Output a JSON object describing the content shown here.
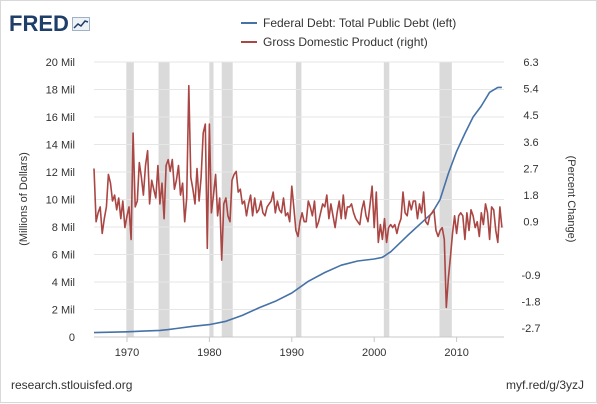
{
  "header": {
    "logo_text": "FRED"
  },
  "footer": {
    "source": "research.stlouisfed.org",
    "short_url": "myf.red/g/3yzJ"
  },
  "colors": {
    "debt": "#4572a7",
    "gdp": "#aa4643",
    "recession": "#dadada",
    "grid": "#e6e6e6",
    "logo": "#1f3e6a"
  },
  "chart_data": {
    "type": "line",
    "legend": [
      {
        "name": "Federal Debt: Total Public Debt (left)",
        "color": "#4572a7"
      },
      {
        "name": "Gross Domestic Product (right)",
        "color": "#aa4643"
      }
    ],
    "ylabel_left": "(Millions of Dollars)",
    "ylabel_right": "(Percent Change)",
    "x_ticks": [
      "1970",
      "1980",
      "1990",
      "2000",
      "2010"
    ],
    "y_left_ticks": [
      "0",
      "2 Mil",
      "4 Mil",
      "6 Mil",
      "8 Mil",
      "10 Mil",
      "12 Mil",
      "14 Mil",
      "16 Mil",
      "18 Mil",
      "20 Mil"
    ],
    "y_right_ticks": [
      "-2.7",
      "-1.8",
      "-0.9",
      "0.9",
      "1.8",
      "2.7",
      "3.6",
      "4.5",
      "5.4",
      "6.3"
    ],
    "xlim": [
      1966,
      2015.75
    ],
    "ylim_left": [
      0,
      20000000
    ],
    "ylim_right": [
      -3.0,
      6.3
    ],
    "recessions": [
      [
        1969.92,
        1970.83
      ],
      [
        1973.83,
        1975.17
      ],
      [
        1980.0,
        1980.5
      ],
      [
        1981.5,
        1982.83
      ],
      [
        1990.5,
        1991.17
      ],
      [
        2001.17,
        2001.83
      ],
      [
        2007.92,
        2009.42
      ]
    ],
    "series": [
      {
        "name": "Federal Debt: Total Public Debt (left)",
        "axis": "left",
        "points": [
          [
            1966,
            320000
          ],
          [
            1968,
            350000
          ],
          [
            1970,
            380000
          ],
          [
            1972,
            430000
          ],
          [
            1974,
            480000
          ],
          [
            1975,
            540000
          ],
          [
            1976,
            620000
          ],
          [
            1978,
            780000
          ],
          [
            1980,
            900000
          ],
          [
            1982,
            1140000
          ],
          [
            1984,
            1570000
          ],
          [
            1986,
            2120000
          ],
          [
            1988,
            2600000
          ],
          [
            1990,
            3200000
          ],
          [
            1992,
            4050000
          ],
          [
            1994,
            4690000
          ],
          [
            1996,
            5220000
          ],
          [
            1998,
            5530000
          ],
          [
            2000,
            5670000
          ],
          [
            2001,
            5800000
          ],
          [
            2002,
            6200000
          ],
          [
            2004,
            7350000
          ],
          [
            2006,
            8450000
          ],
          [
            2007,
            9000000
          ],
          [
            2008,
            10000000
          ],
          [
            2009,
            11900000
          ],
          [
            2010,
            13500000
          ],
          [
            2011,
            14800000
          ],
          [
            2012,
            16000000
          ],
          [
            2013,
            16800000
          ],
          [
            2014,
            17800000
          ],
          [
            2015,
            18150000
          ],
          [
            2015.5,
            18150000
          ]
        ]
      },
      {
        "name": "Gross Domestic Product (right)",
        "axis": "right",
        "points": [
          [
            1966.0,
            2.7
          ],
          [
            1966.25,
            0.9
          ],
          [
            1966.5,
            1.2
          ],
          [
            1966.75,
            1.4
          ],
          [
            1967.0,
            0.5
          ],
          [
            1967.25,
            1.0
          ],
          [
            1967.5,
            1.4
          ],
          [
            1967.75,
            2.5
          ],
          [
            1968.0,
            2.2
          ],
          [
            1968.25,
            1.6
          ],
          [
            1968.5,
            1.8
          ],
          [
            1968.75,
            1.3
          ],
          [
            1969.0,
            1.7
          ],
          [
            1969.25,
            1.0
          ],
          [
            1969.5,
            1.6
          ],
          [
            1969.75,
            0.7
          ],
          [
            1970.0,
            1.1
          ],
          [
            1970.25,
            1.4
          ],
          [
            1970.5,
            0.3
          ],
          [
            1970.75,
            3.9
          ],
          [
            1971.0,
            1.4
          ],
          [
            1971.25,
            1.6
          ],
          [
            1971.5,
            2.9
          ],
          [
            1971.75,
            2.4
          ],
          [
            1972.0,
            1.8
          ],
          [
            1972.25,
            2.8
          ],
          [
            1972.5,
            3.3
          ],
          [
            1972.75,
            1.5
          ],
          [
            1973.0,
            2.3
          ],
          [
            1973.25,
            2.0
          ],
          [
            1973.5,
            1.7
          ],
          [
            1973.75,
            2.8
          ],
          [
            1974.0,
            1.5
          ],
          [
            1974.25,
            2.2
          ],
          [
            1974.5,
            1.0
          ],
          [
            1974.75,
            2.8
          ],
          [
            1975.0,
            3.0
          ],
          [
            1975.25,
            2.6
          ],
          [
            1975.5,
            3.0
          ],
          [
            1975.75,
            2.0
          ],
          [
            1976.0,
            2.3
          ],
          [
            1976.25,
            2.8
          ],
          [
            1976.5,
            1.8
          ],
          [
            1976.75,
            2.2
          ],
          [
            1977.0,
            0.9
          ],
          [
            1977.25,
            1.7
          ],
          [
            1977.5,
            5.5
          ],
          [
            1977.75,
            2.4
          ],
          [
            1978.0,
            2.0
          ],
          [
            1978.25,
            1.5
          ],
          [
            1978.5,
            2.7
          ],
          [
            1978.75,
            1.6
          ],
          [
            1979.0,
            2.4
          ],
          [
            1979.25,
            3.9
          ],
          [
            1979.5,
            4.2
          ],
          [
            1979.75,
            0.0
          ],
          [
            1980.0,
            4.2
          ],
          [
            1980.25,
            1.2
          ],
          [
            1980.5,
            1.8
          ],
          [
            1980.75,
            2.5
          ],
          [
            1981.0,
            1.1
          ],
          [
            1981.25,
            1.7
          ],
          [
            1981.5,
            -0.4
          ],
          [
            1981.75,
            1.5
          ],
          [
            1982.0,
            1.7
          ],
          [
            1982.25,
            1.1
          ],
          [
            1982.5,
            0.9
          ],
          [
            1982.75,
            2.3
          ],
          [
            1983.0,
            2.5
          ],
          [
            1983.25,
            2.6
          ],
          [
            1983.5,
            1.9
          ],
          [
            1983.75,
            2.0
          ],
          [
            1984.0,
            1.5
          ],
          [
            1984.25,
            1.6
          ],
          [
            1984.5,
            1.1
          ],
          [
            1984.75,
            1.5
          ],
          [
            1985.0,
            1.8
          ],
          [
            1985.25,
            1.1
          ],
          [
            1985.5,
            1.7
          ],
          [
            1985.75,
            1.2
          ],
          [
            1986.0,
            1.3
          ],
          [
            1986.25,
            1.6
          ],
          [
            1986.5,
            1.2
          ],
          [
            1986.75,
            1.1
          ],
          [
            1987.0,
            1.4
          ],
          [
            1987.25,
            1.5
          ],
          [
            1987.5,
            1.6
          ],
          [
            1987.75,
            1.9
          ],
          [
            1988.0,
            1.2
          ],
          [
            1988.25,
            1.6
          ],
          [
            1988.5,
            1.3
          ],
          [
            1988.75,
            1.2
          ],
          [
            1989.0,
            1.7
          ],
          [
            1989.25,
            1.1
          ],
          [
            1989.5,
            1.2
          ],
          [
            1989.75,
            0.9
          ],
          [
            1990.0,
            2.1
          ],
          [
            1990.25,
            1.4
          ],
          [
            1990.5,
            0.6
          ],
          [
            1990.75,
            0.4
          ],
          [
            1991.0,
            0.9
          ],
          [
            1991.25,
            1.2
          ],
          [
            1991.5,
            0.9
          ],
          [
            1991.75,
            0.9
          ],
          [
            1992.0,
            1.6
          ],
          [
            1992.25,
            1.4
          ],
          [
            1992.5,
            1.1
          ],
          [
            1992.75,
            1.6
          ],
          [
            1993.0,
            0.7
          ],
          [
            1993.25,
            0.9
          ],
          [
            1993.5,
            1.2
          ],
          [
            1993.75,
            1.5
          ],
          [
            1994.0,
            1.4
          ],
          [
            1994.25,
            1.8
          ],
          [
            1994.5,
            1.0
          ],
          [
            1994.75,
            1.5
          ],
          [
            1995.0,
            1.1
          ],
          [
            1995.25,
            0.7
          ],
          [
            1995.5,
            1.2
          ],
          [
            1995.75,
            1.6
          ],
          [
            1996.0,
            1.0
          ],
          [
            1996.25,
            1.8
          ],
          [
            1996.5,
            1.0
          ],
          [
            1996.75,
            1.4
          ],
          [
            1997.0,
            1.4
          ],
          [
            1997.25,
            1.5
          ],
          [
            1997.5,
            1.2
          ],
          [
            1997.75,
            1.0
          ],
          [
            1998.0,
            0.9
          ],
          [
            1998.25,
            0.8
          ],
          [
            1998.5,
            1.3
          ],
          [
            1998.75,
            1.6
          ],
          [
            1999.0,
            1.1
          ],
          [
            1999.25,
            0.9
          ],
          [
            1999.5,
            1.5
          ],
          [
            1999.75,
            2.1
          ],
          [
            2000.0,
            0.7
          ],
          [
            2000.25,
            1.9
          ],
          [
            2000.5,
            0.2
          ],
          [
            2000.75,
            0.8
          ],
          [
            2001.0,
            0.3
          ],
          [
            2001.25,
            1.0
          ],
          [
            2001.5,
            0.2
          ],
          [
            2001.75,
            0.7
          ],
          [
            2002.0,
            0.8
          ],
          [
            2002.25,
            0.7
          ],
          [
            2002.5,
            0.8
          ],
          [
            2002.75,
            0.5
          ],
          [
            2003.0,
            0.8
          ],
          [
            2003.25,
            1.0
          ],
          [
            2003.5,
            1.9
          ],
          [
            2003.75,
            1.2
          ],
          [
            2004.0,
            1.1
          ],
          [
            2004.25,
            1.6
          ],
          [
            2004.5,
            1.3
          ],
          [
            2004.75,
            1.6
          ],
          [
            2005.0,
            1.6
          ],
          [
            2005.25,
            1.0
          ],
          [
            2005.5,
            1.5
          ],
          [
            2005.75,
            1.2
          ],
          [
            2006.0,
            1.9
          ],
          [
            2006.25,
            0.9
          ],
          [
            2006.5,
            0.8
          ],
          [
            2006.75,
            1.1
          ],
          [
            2007.0,
            1.2
          ],
          [
            2007.25,
            1.3
          ],
          [
            2007.5,
            0.6
          ],
          [
            2007.75,
            0.4
          ],
          [
            2008.0,
            0.6
          ],
          [
            2008.25,
            0.7
          ],
          [
            2008.5,
            0.3
          ],
          [
            2008.75,
            -2.0
          ],
          [
            2009.0,
            -1.0
          ],
          [
            2009.25,
            -0.3
          ],
          [
            2009.5,
            0.5
          ],
          [
            2009.75,
            1.1
          ],
          [
            2010.0,
            0.5
          ],
          [
            2010.25,
            1.1
          ],
          [
            2010.5,
            1.2
          ],
          [
            2010.75,
            1.1
          ],
          [
            2011.0,
            0.3
          ],
          [
            2011.25,
            1.2
          ],
          [
            2011.5,
            0.6
          ],
          [
            2011.75,
            1.3
          ],
          [
            2012.0,
            1.1
          ],
          [
            2012.25,
            0.7
          ],
          [
            2012.5,
            0.9
          ],
          [
            2012.75,
            0.4
          ],
          [
            2013.0,
            1.2
          ],
          [
            2013.25,
            0.8
          ],
          [
            2013.5,
            1.5
          ],
          [
            2013.75,
            1.2
          ],
          [
            2014.0,
            0.3
          ],
          [
            2014.25,
            1.4
          ],
          [
            2014.5,
            1.3
          ],
          [
            2014.75,
            0.6
          ],
          [
            2015.0,
            0.2
          ],
          [
            2015.25,
            1.4
          ],
          [
            2015.5,
            0.7
          ]
        ]
      }
    ]
  }
}
